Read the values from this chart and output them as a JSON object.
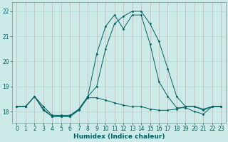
{
  "xlabel": "Humidex (Indice chaleur)",
  "xlim": [
    -0.5,
    23.5
  ],
  "ylim": [
    17.55,
    22.35
  ],
  "yticks": [
    18,
    19,
    20,
    21,
    22
  ],
  "xticks": [
    0,
    1,
    2,
    3,
    4,
    5,
    6,
    7,
    8,
    9,
    10,
    11,
    12,
    13,
    14,
    15,
    16,
    17,
    18,
    19,
    20,
    21,
    22,
    23
  ],
  "bg_color": "#cceae8",
  "grid_color": "#aad4d0",
  "line_color": "#006060",
  "line1_y": [
    18.2,
    18.2,
    18.6,
    18.05,
    17.8,
    17.8,
    17.8,
    18.05,
    18.55,
    18.55,
    18.45,
    18.35,
    18.25,
    18.2,
    18.2,
    18.1,
    18.05,
    18.05,
    18.1,
    18.2,
    18.2,
    18.05,
    18.2,
    18.2
  ],
  "line2_y": [
    18.2,
    18.2,
    18.6,
    18.1,
    17.8,
    17.8,
    17.8,
    18.1,
    18.6,
    19.0,
    20.5,
    21.5,
    21.8,
    22.0,
    22.0,
    21.5,
    20.8,
    19.7,
    18.6,
    18.2,
    18.2,
    18.1,
    18.2,
    18.2
  ],
  "line3_y": [
    18.2,
    18.2,
    18.6,
    18.2,
    17.85,
    17.85,
    17.85,
    18.1,
    18.6,
    20.3,
    21.4,
    21.85,
    21.3,
    21.85,
    21.85,
    20.7,
    19.2,
    18.6,
    18.15,
    18.15,
    18.0,
    17.9,
    18.2,
    18.2
  ]
}
